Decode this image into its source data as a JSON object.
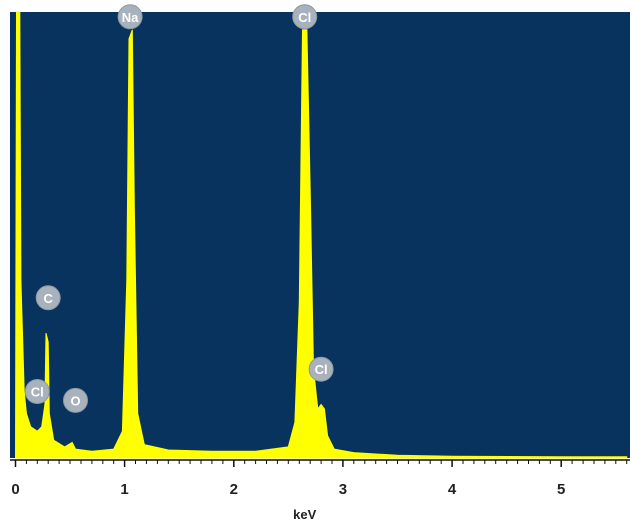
{
  "chart_data": {
    "type": "area",
    "title": "",
    "xlabel": "keV",
    "ylabel": "",
    "xlim": [
      -0.05,
      5.63
    ],
    "ylim": [
      0,
      100
    ],
    "grid": false,
    "x_ticks": [
      0,
      1,
      2,
      3,
      4,
      5
    ],
    "x_tick_labels": [
      "0",
      "1",
      "2",
      "3",
      "4",
      "5"
    ],
    "colors": {
      "plot_background": "#08335f",
      "spectrum": "#ffff00",
      "label_badge": "#a8b2bd",
      "axis": "#111111"
    },
    "series": [
      {
        "values": [
          [
            0.0,
            0.0
          ],
          [
            0.01,
            100.0
          ],
          [
            0.04,
            100.0
          ],
          [
            0.05,
            40.0
          ],
          [
            0.08,
            15.0
          ],
          [
            0.1,
            10.0
          ],
          [
            0.14,
            7.0
          ],
          [
            0.2,
            6.0
          ],
          [
            0.24,
            7.0
          ],
          [
            0.27,
            12.0
          ],
          [
            0.28,
            28.0
          ],
          [
            0.3,
            26.0
          ],
          [
            0.31,
            10.0
          ],
          [
            0.35,
            4.0
          ],
          [
            0.45,
            2.5
          ],
          [
            0.52,
            3.5
          ],
          [
            0.55,
            2.0
          ],
          [
            0.7,
            1.5
          ],
          [
            0.9,
            2.0
          ],
          [
            0.98,
            6.0
          ],
          [
            1.02,
            40.0
          ],
          [
            1.04,
            94.0
          ],
          [
            1.07,
            96.0
          ],
          [
            1.09,
            55.0
          ],
          [
            1.12,
            10.0
          ],
          [
            1.18,
            3.0
          ],
          [
            1.4,
            1.8
          ],
          [
            1.8,
            1.5
          ],
          [
            2.2,
            1.5
          ],
          [
            2.5,
            2.5
          ],
          [
            2.56,
            8.0
          ],
          [
            2.6,
            35.0
          ],
          [
            2.63,
            96.0
          ],
          [
            2.67,
            96.0
          ],
          [
            2.7,
            60.0
          ],
          [
            2.73,
            20.0
          ],
          [
            2.77,
            11.0
          ],
          [
            2.8,
            12.0
          ],
          [
            2.83,
            11.0
          ],
          [
            2.86,
            5.0
          ],
          [
            2.92,
            2.0
          ],
          [
            3.1,
            1.2
          ],
          [
            3.5,
            0.6
          ],
          [
            4.0,
            0.4
          ],
          [
            5.0,
            0.3
          ],
          [
            5.6,
            0.3
          ]
        ]
      }
    ],
    "peak_labels": [
      {
        "element": "Na",
        "x": 1.05,
        "y": 96
      },
      {
        "element": "Cl",
        "x": 2.65,
        "y": 96
      },
      {
        "element": "C",
        "x": 0.3,
        "y": 33
      },
      {
        "element": "Cl",
        "x": 0.2,
        "y": 12
      },
      {
        "element": "O",
        "x": 0.55,
        "y": 10
      },
      {
        "element": "Cl",
        "x": 2.8,
        "y": 17
      }
    ]
  }
}
